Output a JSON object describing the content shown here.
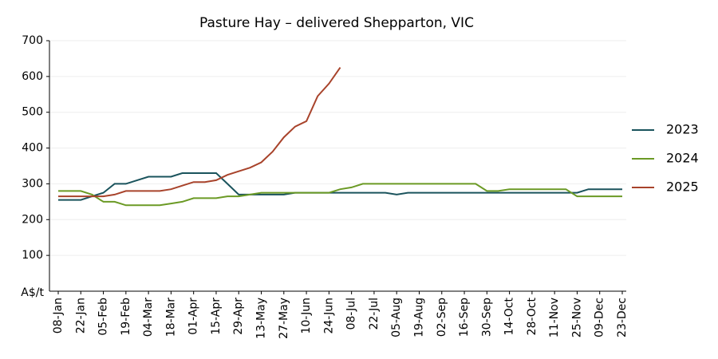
{
  "chart_data": {
    "type": "line",
    "title": "Pasture Hay – delivered Shepparton, VIC",
    "y_label": "A$/t",
    "categories": [
      "08-Jan",
      null,
      "22-Jan",
      null,
      "05-Feb",
      null,
      "19-Feb",
      null,
      "04-Mar",
      null,
      "18-Mar",
      null,
      "01-Apr",
      null,
      "15-Apr",
      null,
      "29-Apr",
      null,
      "13-May",
      null,
      "27-May",
      null,
      "10-Jun",
      null,
      "24-Jun",
      null,
      "08-Jul",
      null,
      "22-Jul",
      null,
      "05-Aug",
      null,
      "19-Aug",
      null,
      "02-Sep",
      null,
      "16-Sep",
      null,
      "30-Sep",
      null,
      "14-Oct",
      null,
      "28-Oct",
      null,
      "11-Nov",
      null,
      "25-Nov",
      null,
      "09-Dec",
      null,
      "23-Dec"
    ],
    "series": [
      {
        "name": "2023",
        "color": "#1a535c",
        "values": [
          255,
          255,
          255,
          265,
          275,
          300,
          300,
          310,
          320,
          320,
          320,
          330,
          330,
          330,
          330,
          300,
          270,
          270,
          270,
          270,
          270,
          275,
          275,
          275,
          275,
          275,
          275,
          275,
          275,
          275,
          270,
          275,
          275,
          275,
          275,
          275,
          275,
          275,
          275,
          275,
          275,
          275,
          275,
          275,
          275,
          275,
          275,
          285,
          285,
          285,
          285
        ]
      },
      {
        "name": "2024",
        "color": "#6b9a25",
        "values": [
          280,
          280,
          280,
          270,
          250,
          250,
          240,
          240,
          240,
          240,
          245,
          250,
          260,
          260,
          260,
          265,
          265,
          270,
          275,
          275,
          275,
          275,
          275,
          275,
          275,
          285,
          290,
          300,
          300,
          300,
          300,
          300,
          300,
          300,
          300,
          300,
          300,
          300,
          280,
          280,
          285,
          285,
          285,
          285,
          285,
          285,
          265,
          265,
          265,
          265,
          265
        ]
      },
      {
        "name": "2025",
        "color": "#a8432b",
        "values": [
          265,
          265,
          265,
          265,
          265,
          270,
          280,
          280,
          280,
          280,
          285,
          295,
          305,
          305,
          310,
          325,
          335,
          345,
          360,
          390,
          430,
          460,
          475,
          545,
          580,
          625,
          null,
          null,
          null,
          null,
          null,
          null,
          null,
          null,
          null,
          null,
          null,
          null,
          null,
          null,
          null,
          null,
          null,
          null,
          null,
          null,
          null,
          null,
          null,
          null,
          null
        ]
      }
    ],
    "ylim": [
      0,
      700
    ],
    "yticks": [
      100,
      200,
      300,
      400,
      500,
      600,
      700
    ],
    "grid": true,
    "legend": "right"
  }
}
